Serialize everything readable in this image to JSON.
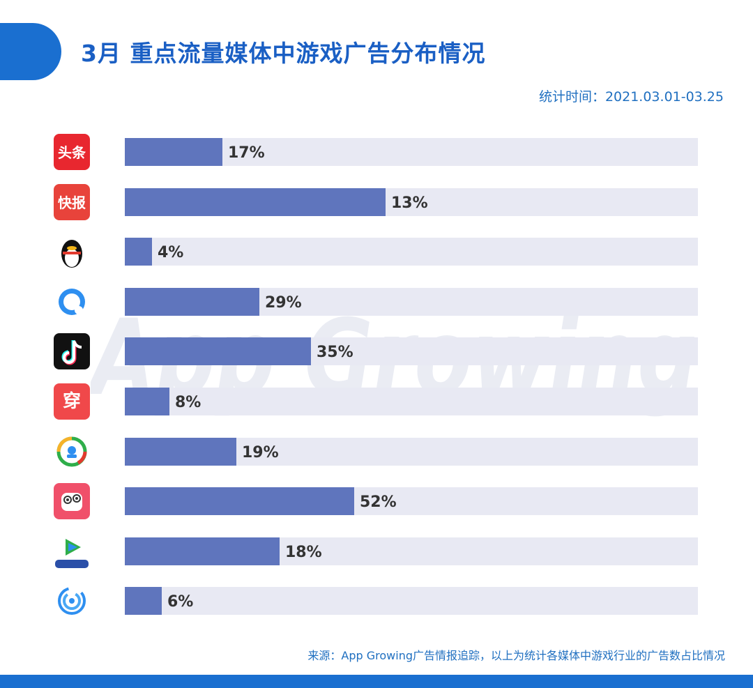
{
  "header": {
    "title": "3月 重点流量媒体中游戏广告分布情况",
    "period": "统计时间：2021.03.01-03.25"
  },
  "footer": {
    "source": "来源：App Growing广告情报追踪，以上为统计各媒体中游戏行业的广告数占比情况"
  },
  "watermark": {
    "text": "App Growing"
  },
  "colors": {
    "accent": "#1a6fd0",
    "bar": "#5f75bd",
    "track": "#e8e9f3",
    "label": "#333333"
  },
  "chart_data": {
    "type": "bar",
    "orientation": "horizontal",
    "categories": [
      "头条",
      "快报",
      "QQ",
      "QQ浏览器",
      "抖音",
      "穿山甲",
      "腾讯新闻",
      "皮皮虾",
      "腾讯视频",
      "优量汇"
    ],
    "icons": [
      {
        "name": "toutiao-icon",
        "bg": "#e8272f",
        "text": "头条",
        "kind": "text"
      },
      {
        "name": "kuaibao-icon",
        "bg": "#e8433b",
        "text": "快报",
        "kind": "text"
      },
      {
        "name": "qq-penguin-icon",
        "bg": "#ffffff",
        "text": "",
        "kind": "penguin"
      },
      {
        "name": "qq-browser-icon",
        "bg": "#ffffff",
        "text": "",
        "kind": "browser"
      },
      {
        "name": "douyin-icon",
        "bg": "#111111",
        "text": "",
        "kind": "douyin"
      },
      {
        "name": "chuanshanjia-icon",
        "bg": "#f0484a",
        "text": "穿",
        "kind": "text"
      },
      {
        "name": "tencent-news-icon",
        "bg": "#ffffff",
        "text": "",
        "kind": "news"
      },
      {
        "name": "pipixia-icon",
        "bg": "#f0506a",
        "text": "",
        "kind": "pipixia"
      },
      {
        "name": "tencent-video-icon",
        "bg": "#ffffff",
        "text": "",
        "kind": "video"
      },
      {
        "name": "youlianghui-icon",
        "bg": "#ffffff",
        "text": "",
        "kind": "ring"
      }
    ],
    "values": [
      17,
      13,
      4,
      29,
      35,
      8,
      19,
      52,
      18,
      6
    ],
    "fill_fractions": [
      0.17,
      0.455,
      0.048,
      0.235,
      0.325,
      0.078,
      0.195,
      0.4,
      0.27,
      0.065
    ],
    "value_labels": [
      "17%",
      "13%",
      "4%",
      "29%",
      "35%",
      "8%",
      "19%",
      "52%",
      "18%",
      "6%"
    ],
    "title": "3月 重点流量媒体中游戏广告分布情况",
    "xlabel": "",
    "ylabel": "",
    "unit": "%",
    "grid": false,
    "legend": "none"
  }
}
